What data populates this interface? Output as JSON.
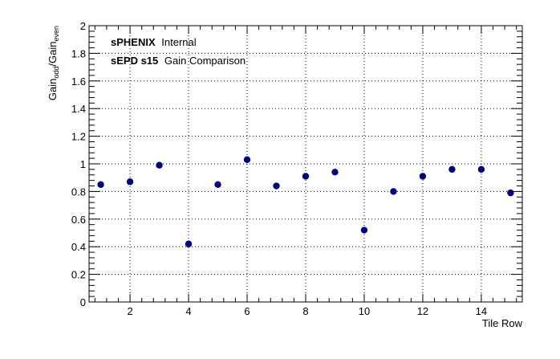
{
  "chart_data": {
    "type": "scatter",
    "xlabel": "Tile Row",
    "ylabel": {
      "main": "Gain",
      "sub_odd": "odd",
      "slash": "/",
      "main2": "Gain",
      "sub_even": "even"
    },
    "xlim": [
      0.6,
      15.4
    ],
    "ylim": [
      0,
      2
    ],
    "x_ticks": [
      2,
      4,
      6,
      8,
      10,
      12,
      14
    ],
    "y_ticks": [
      0,
      0.2,
      0.4,
      0.6,
      0.8,
      1,
      1.2,
      1.4,
      1.6,
      1.8,
      2
    ],
    "grid": true,
    "annotations": {
      "line1_bold": "sPHENIX",
      "line1_rest": "Internal",
      "line2_bold": "sEPD s15",
      "line2_rest": "Gain Comparison"
    },
    "marker_color": "#00007f",
    "series": [
      {
        "x": [
          1,
          2,
          3,
          4,
          5,
          6,
          7,
          8,
          9,
          10,
          11,
          12,
          13,
          14,
          15
        ],
        "y": [
          0.85,
          0.87,
          0.99,
          0.42,
          0.85,
          1.03,
          0.84,
          0.91,
          0.94,
          0.52,
          0.8,
          0.91,
          0.96,
          0.96,
          0.79
        ]
      }
    ]
  }
}
